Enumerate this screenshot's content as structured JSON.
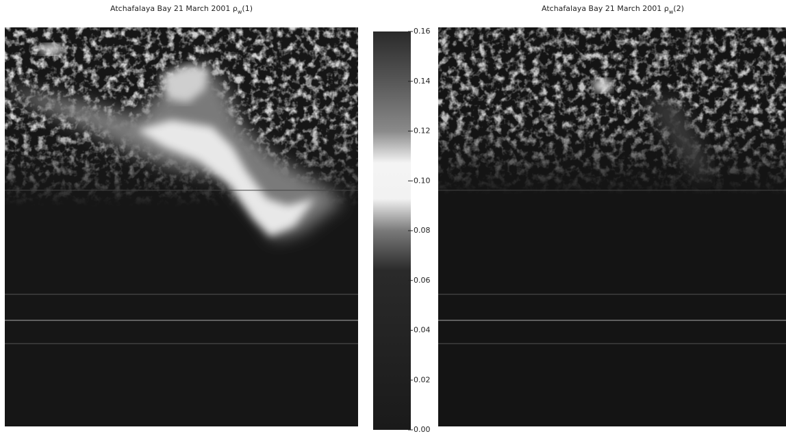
{
  "chart_data": [
    {
      "type": "image",
      "title": "Atchafalaya Bay 21 March 2001 ρ",
      "title_subscript": "w",
      "title_suffix": "(1)"
    },
    {
      "type": "colorbar",
      "ylim": [
        0,
        0.16
      ],
      "yticks": [
        {
          "value": 0,
          "label": "0.00"
        },
        0.02,
        0.04,
        0.06,
        0.08,
        {
          "value": 0.1,
          "label": "0.10"
        },
        0.12,
        0.14,
        0.16
      ]
    },
    {
      "type": "image",
      "title": "Atchafalaya Bay 21 March 2001 ρ",
      "title_subscript": "w",
      "title_suffix": "(2)"
    }
  ]
}
